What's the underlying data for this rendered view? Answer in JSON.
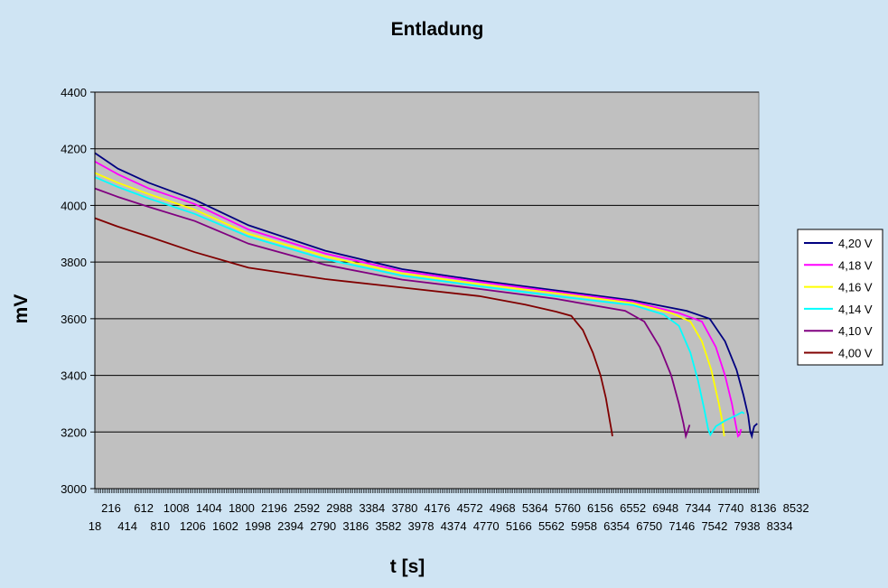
{
  "chart_data": {
    "type": "line",
    "title": "Entladung",
    "xlabel": "t [s]",
    "ylabel": "mV",
    "ylim": [
      3000,
      4400
    ],
    "yticks": [
      3000,
      3200,
      3400,
      3600,
      3800,
      4000,
      4200,
      4400
    ],
    "x_tick_labels_row1": [
      "216",
      "612",
      "1008",
      "1404",
      "1800",
      "2196",
      "2592",
      "2988",
      "3384",
      "3780",
      "4176",
      "4572",
      "4968",
      "5364",
      "5760",
      "6156",
      "6552",
      "6948",
      "7344",
      "7740",
      "8136",
      "8532"
    ],
    "x_tick_labels_row2": [
      "18",
      "414",
      "810",
      "1206",
      "1602",
      "1998",
      "2394",
      "2790",
      "3186",
      "3582",
      "3978",
      "4374",
      "4770",
      "5166",
      "5562",
      "5958",
      "6354",
      "6750",
      "7146",
      "7542",
      "7938",
      "8334"
    ],
    "xlim": [
      0,
      8640
    ],
    "grid": true,
    "plot_background": "#c0c0c0",
    "legend_position": "right",
    "series": [
      {
        "name": "4,20 V",
        "color": "#000080",
        "points": [
          [
            0,
            4185
          ],
          [
            300,
            4130
          ],
          [
            700,
            4080
          ],
          [
            1300,
            4020
          ],
          [
            2000,
            3930
          ],
          [
            3000,
            3840
          ],
          [
            4000,
            3775
          ],
          [
            5000,
            3735
          ],
          [
            6000,
            3700
          ],
          [
            7000,
            3665
          ],
          [
            7700,
            3628
          ],
          [
            8000,
            3600
          ],
          [
            8200,
            3520
          ],
          [
            8350,
            3420
          ],
          [
            8440,
            3330
          ],
          [
            8500,
            3260
          ],
          [
            8530,
            3200
          ],
          [
            8550,
            3185
          ],
          [
            8560,
            3200
          ],
          [
            8580,
            3220
          ],
          [
            8620,
            3230
          ]
        ]
      },
      {
        "name": "4,18 V",
        "color": "#ff00ff",
        "points": [
          [
            0,
            4155
          ],
          [
            300,
            4110
          ],
          [
            700,
            4060
          ],
          [
            1300,
            4005
          ],
          [
            2000,
            3915
          ],
          [
            3000,
            3830
          ],
          [
            4000,
            3768
          ],
          [
            5000,
            3730
          ],
          [
            6000,
            3695
          ],
          [
            7000,
            3660
          ],
          [
            7600,
            3620
          ],
          [
            7900,
            3590
          ],
          [
            8080,
            3500
          ],
          [
            8200,
            3400
          ],
          [
            8290,
            3300
          ],
          [
            8340,
            3225
          ],
          [
            8370,
            3185
          ],
          [
            8390,
            3190
          ],
          [
            8410,
            3210
          ]
        ]
      },
      {
        "name": "4,16 V",
        "color": "#ffff00",
        "points": [
          [
            0,
            4115
          ],
          [
            300,
            4080
          ],
          [
            700,
            4040
          ],
          [
            1300,
            3985
          ],
          [
            2000,
            3900
          ],
          [
            3000,
            3820
          ],
          [
            4000,
            3760
          ],
          [
            5000,
            3722
          ],
          [
            6000,
            3690
          ],
          [
            7000,
            3655
          ],
          [
            7500,
            3620
          ],
          [
            7750,
            3590
          ],
          [
            7900,
            3520
          ],
          [
            8020,
            3420
          ],
          [
            8120,
            3300
          ],
          [
            8170,
            3230
          ],
          [
            8190,
            3185
          ]
        ]
      },
      {
        "name": "4,14 V",
        "color": "#00ffff",
        "points": [
          [
            0,
            4100
          ],
          [
            300,
            4065
          ],
          [
            700,
            4025
          ],
          [
            1300,
            3970
          ],
          [
            2000,
            3890
          ],
          [
            3000,
            3810
          ],
          [
            4000,
            3752
          ],
          [
            5000,
            3715
          ],
          [
            6000,
            3680
          ],
          [
            7000,
            3648
          ],
          [
            7400,
            3615
          ],
          [
            7600,
            3575
          ],
          [
            7750,
            3480
          ],
          [
            7850,
            3380
          ],
          [
            7930,
            3280
          ],
          [
            7980,
            3210
          ],
          [
            8010,
            3190
          ],
          [
            8080,
            3220
          ],
          [
            8200,
            3240
          ],
          [
            8320,
            3255
          ],
          [
            8420,
            3270
          ],
          [
            8450,
            3265
          ]
        ]
      },
      {
        "name": "4,10 V",
        "color": "#800080",
        "points": [
          [
            0,
            4060
          ],
          [
            300,
            4030
          ],
          [
            700,
            3995
          ],
          [
            1300,
            3945
          ],
          [
            2000,
            3865
          ],
          [
            3000,
            3790
          ],
          [
            4000,
            3738
          ],
          [
            5000,
            3705
          ],
          [
            6000,
            3670
          ],
          [
            6900,
            3628
          ],
          [
            7150,
            3590
          ],
          [
            7350,
            3500
          ],
          [
            7500,
            3400
          ],
          [
            7600,
            3300
          ],
          [
            7660,
            3230
          ],
          [
            7690,
            3185
          ],
          [
            7710,
            3200
          ],
          [
            7740,
            3225
          ]
        ]
      },
      {
        "name": "4,00 V",
        "color": "#800000",
        "points": [
          [
            0,
            3955
          ],
          [
            300,
            3925
          ],
          [
            700,
            3890
          ],
          [
            1300,
            3835
          ],
          [
            2000,
            3780
          ],
          [
            3000,
            3740
          ],
          [
            4000,
            3710
          ],
          [
            5000,
            3680
          ],
          [
            5600,
            3650
          ],
          [
            6000,
            3625
          ],
          [
            6200,
            3610
          ],
          [
            6350,
            3560
          ],
          [
            6480,
            3480
          ],
          [
            6580,
            3400
          ],
          [
            6650,
            3320
          ],
          [
            6700,
            3240
          ],
          [
            6730,
            3195
          ],
          [
            6735,
            3185
          ]
        ]
      }
    ]
  }
}
